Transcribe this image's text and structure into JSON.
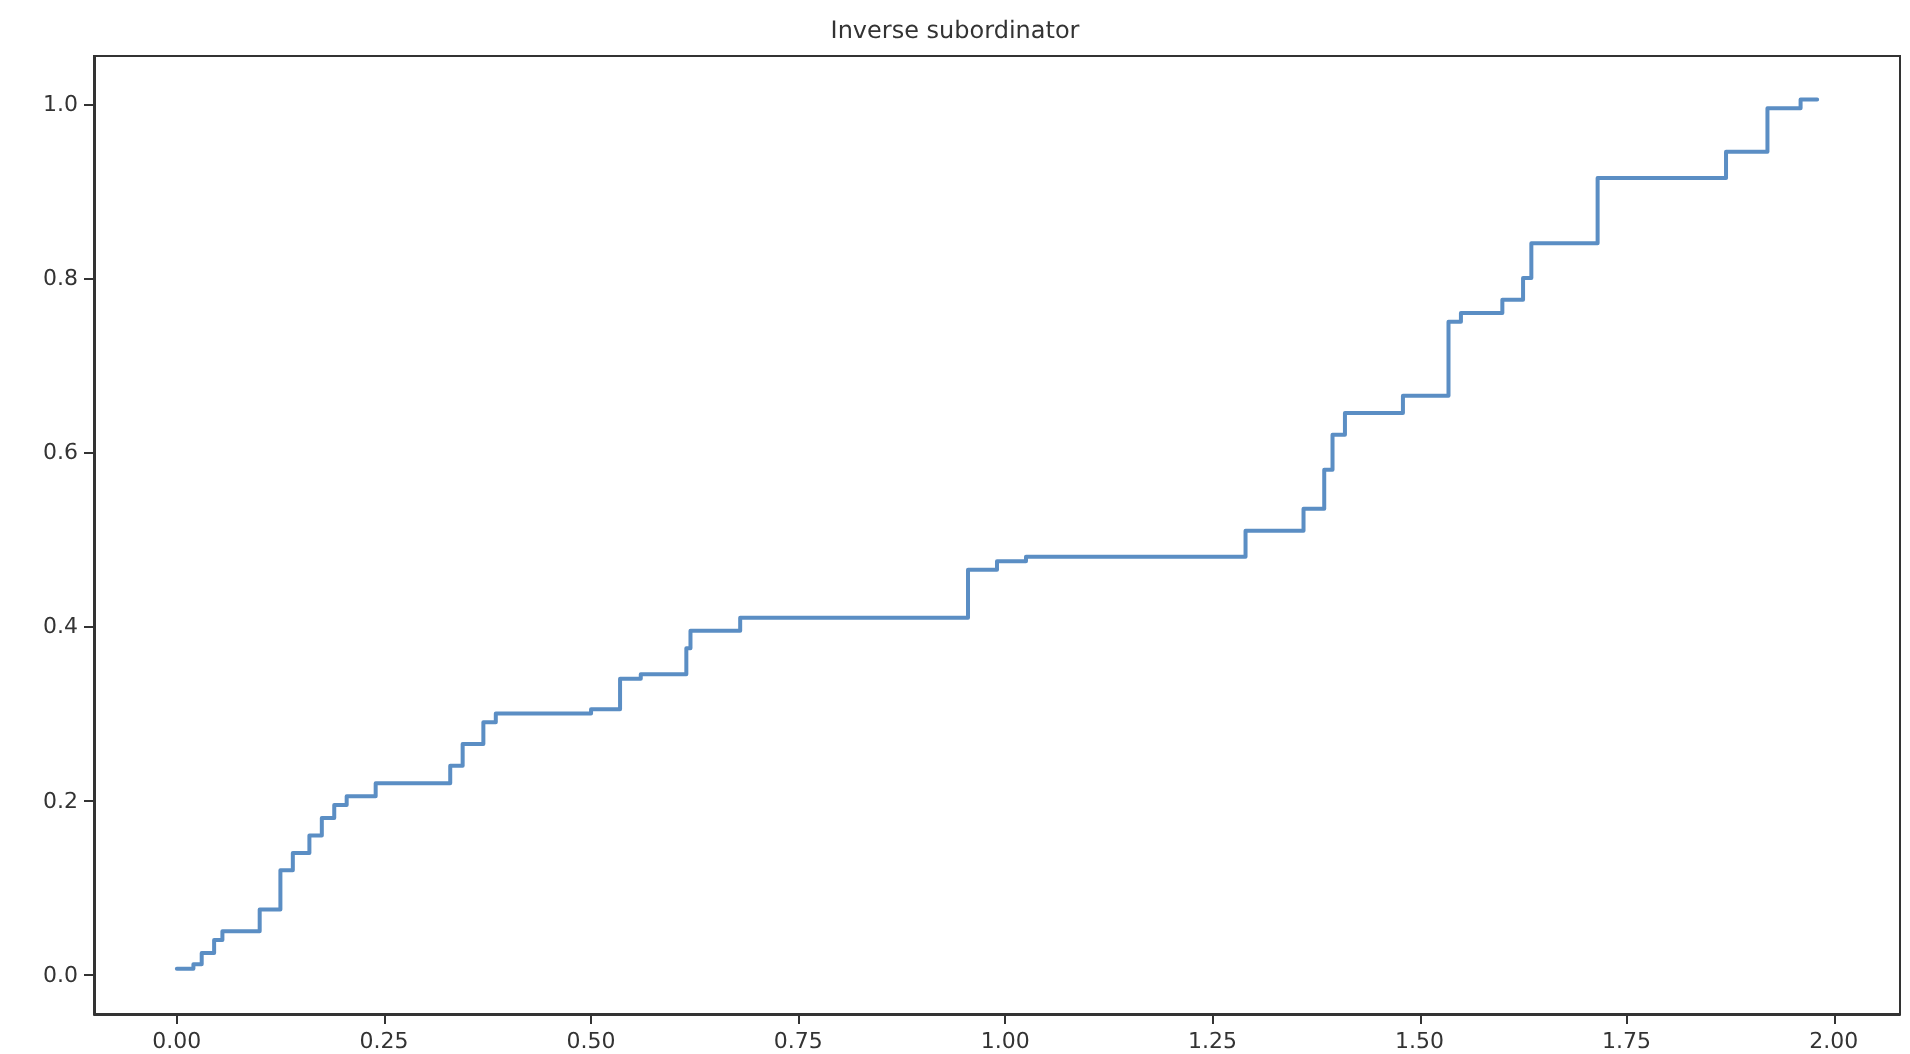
{
  "chart_data": {
    "type": "step",
    "title": "Inverse subordinator",
    "x": [
      0,
      0.02,
      0.03,
      0.045,
      0.055,
      0.1,
      0.125,
      0.14,
      0.16,
      0.175,
      0.19,
      0.205,
      0.24,
      0.33,
      0.345,
      0.37,
      0.385,
      0.5,
      0.535,
      0.56,
      0.615,
      0.62,
      0.68,
      0.955,
      0.99,
      1.025,
      1.29,
      1.36,
      1.385,
      1.395,
      1.41,
      1.48,
      1.535,
      1.55,
      1.6,
      1.625,
      1.635,
      1.715,
      1.87,
      1.92,
      1.96,
      1.98
    ],
    "values": [
      0.007,
      0.012,
      0.025,
      0.04,
      0.05,
      0.075,
      0.12,
      0.14,
      0.16,
      0.18,
      0.195,
      0.205,
      0.22,
      0.24,
      0.265,
      0.29,
      0.3,
      0.305,
      0.34,
      0.345,
      0.375,
      0.395,
      0.41,
      0.465,
      0.475,
      0.48,
      0.51,
      0.535,
      0.58,
      0.62,
      0.645,
      0.665,
      0.75,
      0.76,
      0.775,
      0.8,
      0.84,
      0.915,
      0.945,
      0.995,
      1.005,
      1.005
    ],
    "color": "#5b8ec4",
    "xlim": [
      -0.1,
      2.08
    ],
    "ylim": [
      -0.045,
      1.055
    ],
    "xticks": [
      {
        "value": 0,
        "label": "0.00"
      },
      {
        "value": 0.25,
        "label": "0.25"
      },
      {
        "value": 0.5,
        "label": "0.50"
      },
      {
        "value": 0.75,
        "label": "0.75"
      },
      {
        "value": 1,
        "label": "1.00"
      },
      {
        "value": 1.25,
        "label": "1.25"
      },
      {
        "value": 1.5,
        "label": "1.50"
      },
      {
        "value": 1.75,
        "label": "1.75"
      },
      {
        "value": 2,
        "label": "2.00"
      }
    ],
    "yticks": [
      {
        "value": 0,
        "label": "0.0"
      },
      {
        "value": 0.2,
        "label": "0.2"
      },
      {
        "value": 0.4,
        "label": "0.4"
      },
      {
        "value": 0.6,
        "label": "0.6"
      },
      {
        "value": 0.8,
        "label": "0.8"
      },
      {
        "value": 1,
        "label": "1.0"
      }
    ],
    "grid": false,
    "marker": "none",
    "line_style": "solid"
  }
}
